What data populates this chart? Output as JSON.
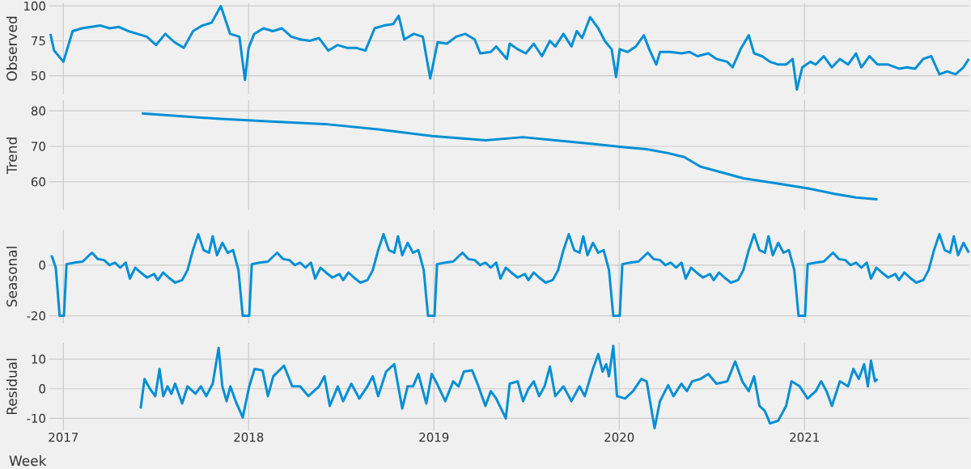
{
  "chart_data": [
    {
      "type": "line",
      "ylabel": "Observed",
      "color": "#008fd5",
      "grid": true,
      "tick_labels": "y",
      "xlim": [
        2016.92,
        2021.89
      ],
      "xticks": [
        2017,
        2018,
        2019,
        2020,
        2021
      ],
      "ylim": [
        37,
        102
      ],
      "yticks": [
        50,
        75,
        100
      ],
      "x": [
        2016.93,
        2016.95,
        2017.0,
        2017.05,
        2017.1,
        2017.15,
        2017.2,
        2017.25,
        2017.3,
        2017.35,
        2017.4,
        2017.45,
        2017.5,
        2017.55,
        2017.6,
        2017.65,
        2017.7,
        2017.75,
        2017.8,
        2017.85,
        2017.9,
        2017.95,
        2017.98,
        2018.0,
        2018.03,
        2018.08,
        2018.13,
        2018.18,
        2018.23,
        2018.28,
        2018.33,
        2018.38,
        2018.43,
        2018.48,
        2018.53,
        2018.58,
        2018.63,
        2018.68,
        2018.73,
        2018.78,
        2018.81,
        2018.84,
        2018.89,
        2018.94,
        2018.98,
        2019.02,
        2019.07,
        2019.12,
        2019.17,
        2019.22,
        2019.25,
        2019.307,
        2019.336,
        2019.394,
        2019.409,
        2019.452,
        2019.496,
        2019.539,
        2019.583,
        2019.626,
        2019.655,
        2019.699,
        2019.742,
        2019.771,
        2019.8,
        2019.843,
        2019.887,
        2019.922,
        2019.959,
        2019.983,
        2020.003,
        2020.046,
        2020.09,
        2020.133,
        2020.162,
        2020.2,
        2020.22,
        2020.278,
        2020.336,
        2020.38,
        2020.423,
        2020.481,
        2020.525,
        2020.583,
        2020.612,
        2020.655,
        2020.699,
        2020.728,
        2020.771,
        2020.814,
        2020.858,
        2020.901,
        2020.936,
        2020.959,
        2020.988,
        2021.032,
        2021.061,
        2021.104,
        2021.148,
        2021.191,
        2021.235,
        2021.278,
        2021.307,
        2021.351,
        2021.394,
        2021.452,
        2021.51,
        2021.554,
        2021.597,
        2021.641,
        2021.684,
        2021.728,
        2021.771,
        2021.815,
        2021.858,
        2021.887
      ],
      "values": [
        80,
        68,
        60,
        82,
        84,
        85,
        86,
        84,
        85,
        82,
        80,
        78,
        72,
        80,
        74,
        70,
        82,
        86,
        88,
        100,
        80,
        78,
        47,
        70,
        80,
        84,
        82,
        84,
        78,
        76,
        75,
        77,
        68,
        72,
        70,
        70,
        68,
        84,
        86,
        87,
        93,
        76,
        80,
        78,
        48,
        74,
        73,
        78,
        80,
        76,
        66,
        67,
        71,
        62,
        73,
        69,
        66,
        73,
        64,
        75,
        71,
        80,
        71,
        82,
        77,
        92,
        84,
        75,
        69,
        49,
        69,
        67,
        71,
        79,
        69,
        58,
        67,
        67,
        66,
        67,
        64,
        66,
        62,
        60,
        56,
        69,
        79,
        66,
        64,
        60,
        58,
        58,
        62,
        40,
        56,
        60,
        58,
        64,
        56,
        62,
        58,
        66,
        56,
        64,
        58,
        58,
        55,
        56,
        55,
        62,
        64,
        51,
        53,
        51,
        56,
        62
      ]
    },
    {
      "type": "line",
      "ylabel": "Trend",
      "color": "#008fd5",
      "grid": true,
      "tick_labels": "y",
      "xlim": [
        2016.92,
        2021.89
      ],
      "xticks": [
        2017,
        2018,
        2019,
        2020,
        2021
      ],
      "ylim": [
        52,
        83
      ],
      "yticks": [
        60,
        70,
        80
      ],
      "x": [
        2017.423,
        2017.83,
        2018.12,
        2018.41,
        2018.7,
        2018.99,
        2019.28,
        2019.48,
        2019.655,
        2019.858,
        2020.0,
        2020.148,
        2020.264,
        2020.351,
        2020.438,
        2020.67,
        2020.849,
        2021.026,
        2021.162,
        2021.278,
        2021.394
      ],
      "values": [
        79.3,
        77.8,
        77.0,
        76.3,
        74.8,
        72.9,
        71.7,
        72.6,
        71.7,
        70.7,
        69.9,
        69.2,
        68.1,
        67.0,
        64.3,
        61.0,
        59.6,
        58.1,
        56.6,
        55.6,
        55.1
      ]
    },
    {
      "type": "line",
      "ylabel": "Seasonal",
      "color": "#008fd5",
      "grid": true,
      "tick_labels": "y",
      "xlim": [
        2016.92,
        2021.89
      ],
      "xticks": [
        2017,
        2018,
        2019,
        2020,
        2021
      ],
      "ylim": [
        -23,
        14
      ],
      "yticks": [
        -20,
        0
      ],
      "x": [
        2016.936,
        2016.959,
        2016.98,
        2017.003,
        2017.017,
        2017.061,
        2017.104,
        2017.154,
        2017.186,
        2017.22,
        2017.249,
        2017.278,
        2017.307,
        2017.336,
        2017.359,
        2017.388,
        2017.417,
        2017.452,
        2017.49,
        2017.51,
        2017.539,
        2017.568,
        2017.603,
        2017.641,
        2017.67,
        2017.699,
        2017.728,
        2017.757,
        2017.786,
        2017.806,
        2017.829,
        2017.858,
        2017.887,
        2017.916,
        2017.945,
        2017.968,
        2018.003,
        2018.017,
        2018.061,
        2018.104,
        2018.154,
        2018.186,
        2018.22,
        2018.249,
        2018.278,
        2018.307,
        2018.336,
        2018.359,
        2018.388,
        2018.417,
        2018.452,
        2018.49,
        2018.51,
        2018.539,
        2018.568,
        2018.603,
        2018.641,
        2018.67,
        2018.699,
        2018.728,
        2018.757,
        2018.786,
        2018.806,
        2018.829,
        2018.858,
        2018.887,
        2018.916,
        2018.945,
        2018.968,
        2019.003,
        2019.017,
        2019.061,
        2019.104,
        2019.154,
        2019.186,
        2019.22,
        2019.249,
        2019.278,
        2019.307,
        2019.336,
        2019.359,
        2019.388,
        2019.417,
        2019.452,
        2019.49,
        2019.51,
        2019.539,
        2019.568,
        2019.603,
        2019.641,
        2019.67,
        2019.699,
        2019.728,
        2019.757,
        2019.786,
        2019.806,
        2019.829,
        2019.858,
        2019.887,
        2019.916,
        2019.945,
        2019.968,
        2020.003,
        2020.017,
        2020.061,
        2020.104,
        2020.154,
        2020.186,
        2020.22,
        2020.249,
        2020.278,
        2020.307,
        2020.336,
        2020.359,
        2020.388,
        2020.417,
        2020.452,
        2020.49,
        2020.51,
        2020.539,
        2020.568,
        2020.603,
        2020.641,
        2020.67,
        2020.699,
        2020.728,
        2020.757,
        2020.786,
        2020.806,
        2020.829,
        2020.858,
        2020.887,
        2020.916,
        2020.945,
        2020.968,
        2021.003,
        2021.017,
        2021.061,
        2021.104,
        2021.154,
        2021.186,
        2021.22,
        2021.249,
        2021.278,
        2021.307,
        2021.336,
        2021.359,
        2021.388,
        2021.417,
        2021.452,
        2021.49,
        2021.51,
        2021.539,
        2021.568,
        2021.603,
        2021.641,
        2021.67,
        2021.699,
        2021.728,
        2021.757,
        2021.786,
        2021.806,
        2021.829,
        2021.858,
        2021.887
      ],
      "values": [
        3.9,
        -1,
        -20,
        -20,
        0.4,
        1,
        1.4,
        4.9,
        2.4,
        2,
        0,
        1,
        -1,
        1,
        -5.3,
        -1,
        -2.9,
        -4.9,
        -3.5,
        -5.9,
        -2.9,
        -4.9,
        -6.9,
        -5.9,
        -2,
        5.9,
        12.2,
        5.9,
        4.9,
        11.4,
        3.9,
        8.8,
        4.9,
        5.9,
        -2,
        -20,
        -20,
        0.4,
        1,
        1.4,
        4.9,
        2.4,
        2,
        0,
        1,
        -1,
        1,
        -5.3,
        -1,
        -2.9,
        -4.9,
        -3.5,
        -5.9,
        -2.9,
        -4.9,
        -6.9,
        -5.9,
        -2,
        5.9,
        12.2,
        5.9,
        4.9,
        11.4,
        3.9,
        8.8,
        4.9,
        5.9,
        -2,
        -20,
        -20,
        0.4,
        1,
        1.4,
        4.9,
        2.4,
        2,
        0,
        1,
        -1,
        1,
        -5.3,
        -1,
        -2.9,
        -4.9,
        -3.5,
        -5.9,
        -2.9,
        -4.9,
        -6.9,
        -5.9,
        -2,
        5.9,
        12.2,
        5.9,
        4.9,
        11.4,
        3.9,
        8.8,
        4.9,
        5.9,
        -2,
        -20,
        -20,
        0.4,
        1,
        1.4,
        4.9,
        2.4,
        2,
        0,
        1,
        -1,
        1,
        -5.3,
        -1,
        -2.9,
        -4.9,
        -3.5,
        -5.9,
        -2.9,
        -4.9,
        -6.9,
        -5.9,
        -2,
        5.9,
        12.2,
        5.9,
        4.9,
        11.4,
        3.9,
        8.8,
        4.9,
        5.9,
        -2,
        -20,
        -20,
        0.4,
        1,
        1.4,
        4.9,
        2.4,
        2,
        0,
        1,
        -1,
        1,
        -5.3,
        -1,
        -2.9,
        -4.9,
        -3.5,
        -5.9,
        -2.9,
        -4.9,
        -6.9,
        -5.9,
        -2,
        5.9,
        12.2,
        5.9,
        4.9,
        11.4,
        3.9,
        8.8,
        4.9
      ]
    },
    {
      "type": "line",
      "ylabel": "Residual",
      "xlabel": "Week",
      "color": "#008fd5",
      "grid": true,
      "xlim": [
        2016.92,
        2021.89
      ],
      "xticks": [
        2017,
        2018,
        2019,
        2020,
        2021
      ],
      "ylim": [
        -14,
        15.5
      ],
      "yticks": [
        -10,
        0,
        10
      ],
      "x": [
        2017.417,
        2017.438,
        2017.467,
        2017.496,
        2017.519,
        2017.539,
        2017.562,
        2017.583,
        2017.603,
        2017.641,
        2017.67,
        2017.713,
        2017.742,
        2017.771,
        2017.806,
        2017.838,
        2017.858,
        2017.881,
        2017.901,
        2017.93,
        2017.968,
        2018.003,
        2018.032,
        2018.075,
        2018.104,
        2018.133,
        2018.191,
        2018.235,
        2018.278,
        2018.322,
        2018.38,
        2018.409,
        2018.438,
        2018.481,
        2018.51,
        2018.554,
        2018.597,
        2018.641,
        2018.67,
        2018.699,
        2018.742,
        2018.786,
        2018.829,
        2018.858,
        2018.887,
        2018.916,
        2018.959,
        2018.988,
        2019.017,
        2019.061,
        2019.104,
        2019.133,
        2019.162,
        2019.206,
        2019.235,
        2019.278,
        2019.307,
        2019.336,
        2019.388,
        2019.409,
        2019.452,
        2019.481,
        2019.51,
        2019.539,
        2019.568,
        2019.597,
        2019.626,
        2019.655,
        2019.699,
        2019.742,
        2019.786,
        2019.814,
        2019.858,
        2019.887,
        2019.91,
        2019.93,
        2019.945,
        2019.968,
        2019.988,
        2020.032,
        2020.075,
        2020.119,
        2020.148,
        2020.191,
        2020.22,
        2020.264,
        2020.293,
        2020.336,
        2020.365,
        2020.394,
        2020.438,
        2020.481,
        2020.525,
        2020.583,
        2020.626,
        2020.664,
        2020.699,
        2020.728,
        2020.757,
        2020.786,
        2020.814,
        2020.858,
        2020.901,
        2020.93,
        2020.974,
        2021.017,
        2021.061,
        2021.09,
        2021.119,
        2021.148,
        2021.191,
        2021.235,
        2021.264,
        2021.293,
        2021.322,
        2021.342,
        2021.359,
        2021.38,
        2021.394
      ],
      "values": [
        -6.7,
        3.3,
        0,
        -2.5,
        6.7,
        -2.5,
        0.8,
        -1.7,
        1.7,
        -5,
        0.8,
        -1.7,
        0.8,
        -2.5,
        1.7,
        13.8,
        0.8,
        -4.2,
        0.8,
        -4.2,
        -9.7,
        0.8,
        6.7,
        6.2,
        -2.5,
        4.2,
        7.8,
        0.8,
        0.8,
        -2.5,
        0.8,
        4.2,
        -5.8,
        0.8,
        -4.2,
        1.7,
        -3.3,
        0.8,
        4.2,
        -2.5,
        5.8,
        8.3,
        -6.7,
        0.8,
        0.8,
        5,
        -5,
        5,
        1.7,
        -4.2,
        2.5,
        0.8,
        5.8,
        6.2,
        1.7,
        -5.8,
        -0.8,
        -3.3,
        -10,
        1.7,
        2.5,
        -4.2,
        0,
        2.5,
        -2.5,
        0.8,
        7.5,
        -2.5,
        0.8,
        -4.2,
        0.8,
        -2.5,
        6.7,
        11.7,
        5.8,
        8.3,
        4.2,
        14.5,
        -2.5,
        -3.3,
        -0.8,
        3.3,
        2.5,
        -13.3,
        -4.2,
        1.2,
        -2.5,
        1.7,
        -0.8,
        2.5,
        3.3,
        5,
        1.7,
        2.5,
        9.2,
        2.5,
        -0.8,
        4.2,
        -5.8,
        -7.5,
        -11.7,
        -10.8,
        -5.8,
        2.5,
        0.8,
        -3.3,
        -0.8,
        2.5,
        -0.8,
        -5.8,
        2.5,
        0.8,
        6.7,
        3.3,
        8.3,
        0.8,
        9.5,
        2.5,
        3.3
      ]
    }
  ]
}
